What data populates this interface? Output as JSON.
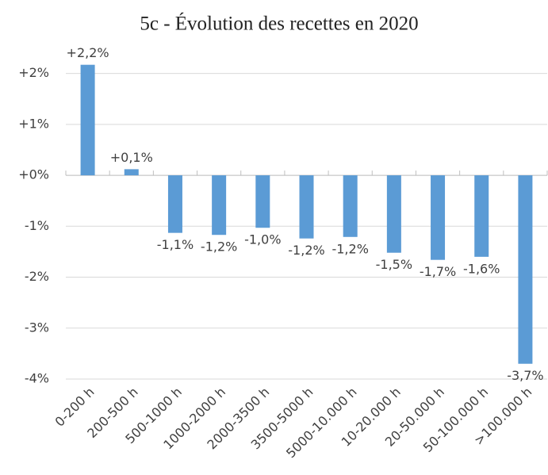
{
  "chart_data": {
    "type": "bar",
    "title": "5c - Évolution des recettes en 2020",
    "categories": [
      "0-200 h",
      "200-500 h",
      "500-1000 h",
      "1000-2000 h",
      "2000-3500 h",
      "3500-5000 h",
      "5000-10.000 h",
      "10-20.000 h",
      "20-50.000 h",
      "50-100.000 h",
      ">100.000 h"
    ],
    "values": [
      2.17,
      0.12,
      -1.13,
      -1.17,
      -1.03,
      -1.24,
      -1.21,
      -1.52,
      -1.66,
      -1.6,
      -3.7
    ],
    "value_labels": [
      "+2,2%",
      "+0,1%",
      "-1,1%",
      "-1,2%",
      "-1,0%",
      "-1,2%",
      "-1,2%",
      "-1,5%",
      "-1,7%",
      "-1,6%",
      "-3,7%"
    ],
    "color": "#5b9bd5",
    "ylim": [
      -4,
      2.5
    ],
    "yticks": [
      {
        "value": 2,
        "label": "+2%"
      },
      {
        "value": 1,
        "label": "+1%"
      },
      {
        "value": 0,
        "label": "+0%"
      },
      {
        "value": -1,
        "label": "-1%"
      },
      {
        "value": -2,
        "label": "-2%"
      },
      {
        "value": -3,
        "label": "-3%"
      },
      {
        "value": -4,
        "label": "-4%"
      }
    ],
    "grid": true
  }
}
